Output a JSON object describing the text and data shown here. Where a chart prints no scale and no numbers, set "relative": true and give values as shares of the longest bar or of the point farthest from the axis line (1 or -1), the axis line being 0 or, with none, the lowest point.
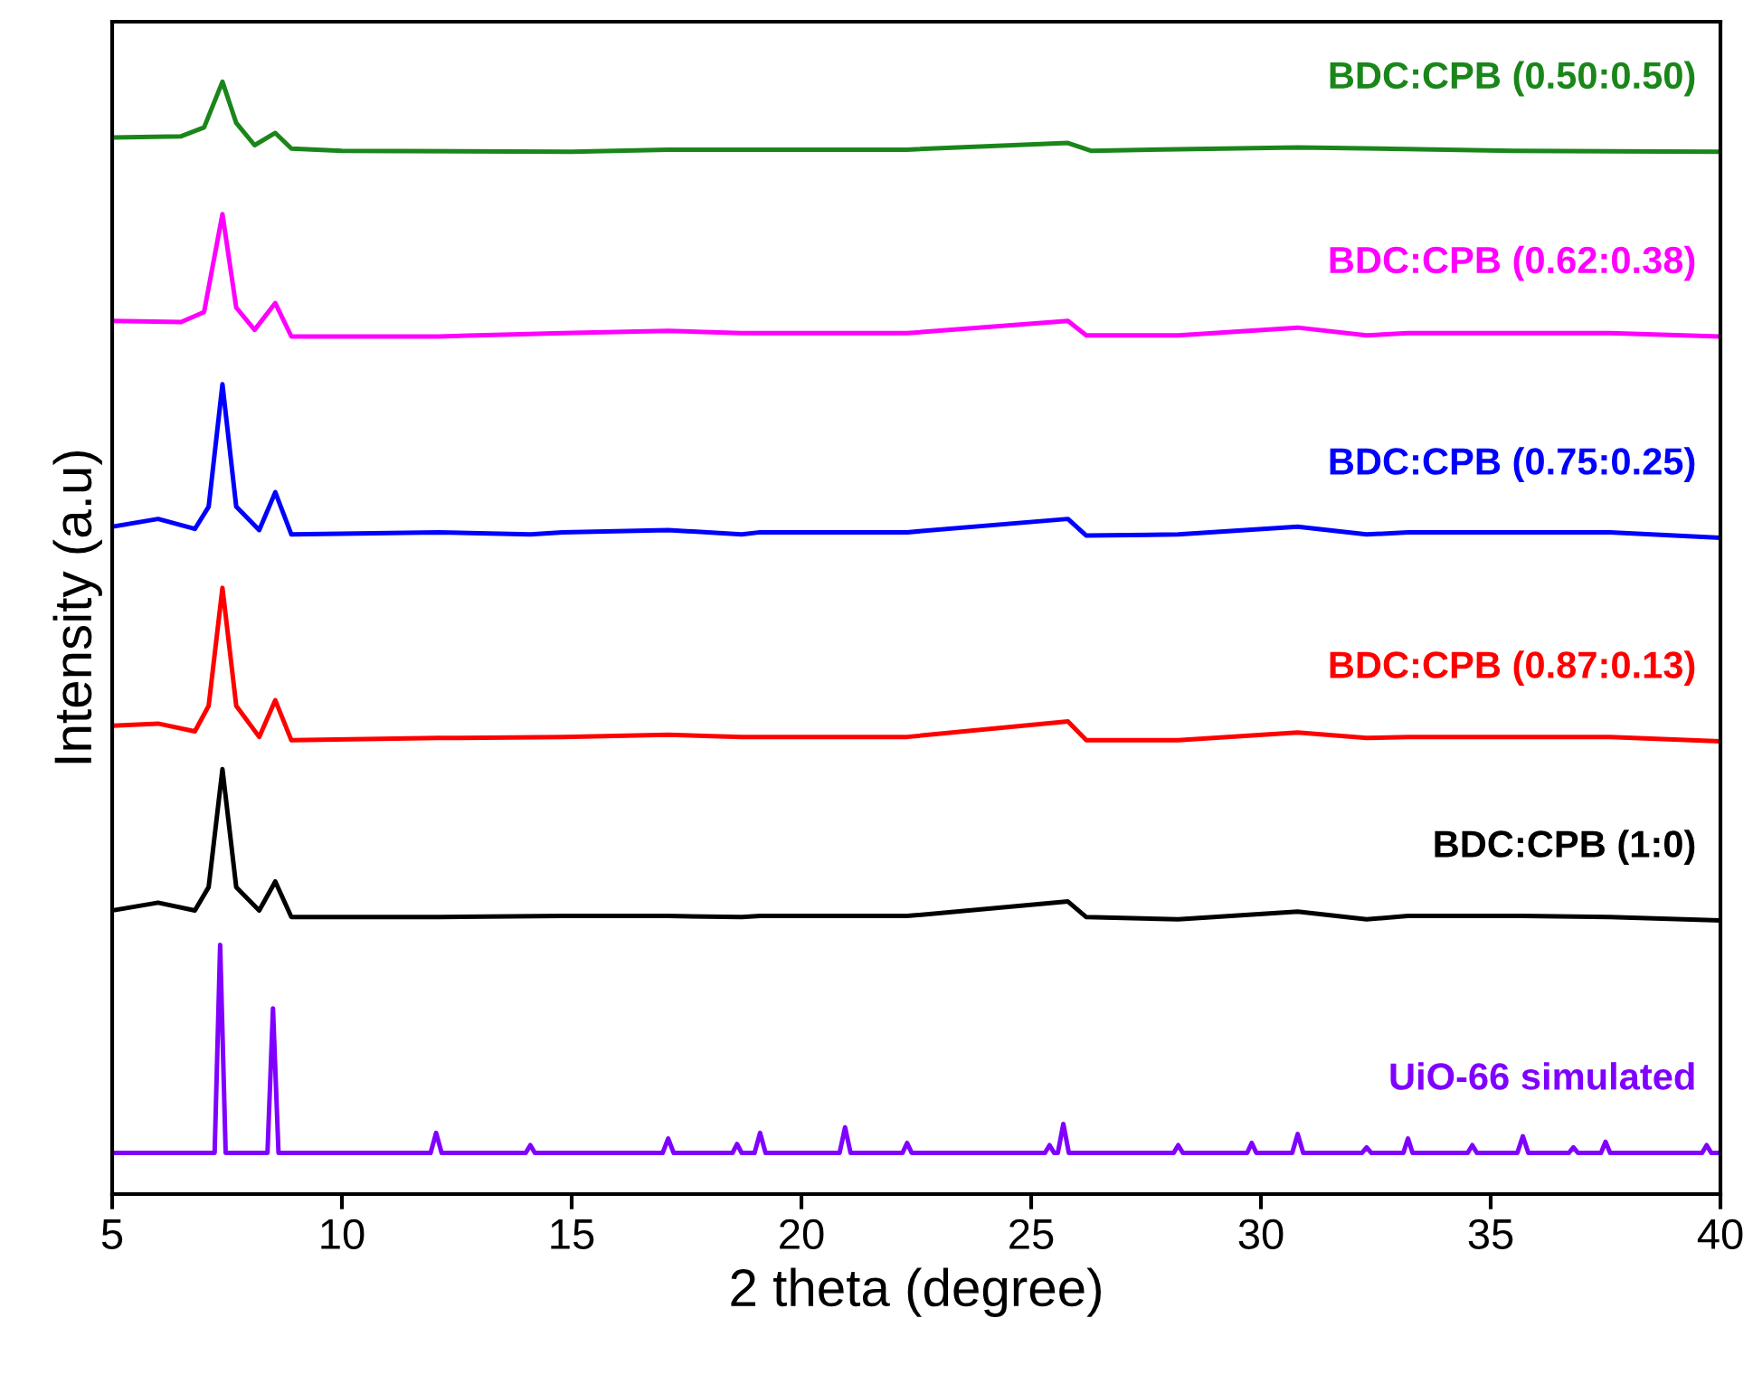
{
  "chart_data": {
    "type": "line",
    "xlabel": "2 theta (degree)",
    "ylabel": "Intensity (a.u)",
    "relative": true,
    "xlim": [
      5,
      40
    ],
    "xticks": [
      5,
      10,
      15,
      20,
      25,
      30,
      35,
      40
    ],
    "tick_labels": "x",
    "grid": false,
    "legend": false,
    "marker": "none",
    "line_style": "solid",
    "series": [
      {
        "name": "BDC:CPB (0.50:0.50)",
        "color": "#1a861a",
        "x": [
          5,
          6.5,
          7.0,
          7.4,
          7.7,
          8.1,
          8.55,
          8.9,
          10,
          15,
          17.1,
          22.3,
          25.8,
          26.3,
          30.8,
          35.5,
          40
        ],
        "values": [
          0.95,
          0.951,
          0.959,
          1.0,
          0.963,
          0.943,
          0.954,
          0.94,
          0.938,
          0.937,
          0.939,
          0.939,
          0.945,
          0.938,
          0.941,
          0.938,
          0.937
        ]
      },
      {
        "name": "BDC:CPB (0.62:0.38)",
        "color": "#ff00ff",
        "x": [
          5,
          6.5,
          7.0,
          7.4,
          7.7,
          8.1,
          8.55,
          8.9,
          12.1,
          14.8,
          17.1,
          18.7,
          19.1,
          22.3,
          25.8,
          26.2,
          28.2,
          30.8,
          32.3,
          33.2,
          35.7,
          37.6,
          40
        ],
        "values": [
          0.785,
          0.784,
          0.793,
          0.881,
          0.797,
          0.777,
          0.801,
          0.771,
          0.771,
          0.774,
          0.776,
          0.774,
          0.774,
          0.774,
          0.785,
          0.772,
          0.772,
          0.779,
          0.772,
          0.774,
          0.774,
          0.774,
          0.771
        ]
      },
      {
        "name": "BDC:CPB (0.75:0.25)",
        "color": "#0000ff",
        "x": [
          5,
          6.0,
          6.8,
          7.1,
          7.4,
          7.7,
          8.2,
          8.55,
          8.9,
          12.1,
          14.1,
          14.8,
          17.1,
          18.7,
          19.1,
          22.3,
          25.8,
          26.2,
          28.2,
          30.8,
          32.3,
          33.2,
          35.7,
          37.6,
          40
        ],
        "values": [
          0.6,
          0.607,
          0.598,
          0.618,
          0.728,
          0.618,
          0.597,
          0.631,
          0.593,
          0.595,
          0.593,
          0.595,
          0.597,
          0.593,
          0.595,
          0.595,
          0.607,
          0.592,
          0.593,
          0.6,
          0.593,
          0.595,
          0.595,
          0.595,
          0.59
        ]
      },
      {
        "name": "BDC:CPB (0.87:0.13)",
        "color": "#ff0000",
        "x": [
          5,
          6.0,
          6.8,
          7.1,
          7.4,
          7.7,
          8.2,
          8.55,
          8.9,
          12.1,
          14.8,
          17.1,
          18.7,
          19.1,
          22.3,
          25.8,
          26.2,
          28.2,
          30.8,
          32.3,
          33.2,
          35.7,
          37.6,
          40
        ],
        "values": [
          0.421,
          0.423,
          0.416,
          0.439,
          0.545,
          0.439,
          0.411,
          0.444,
          0.408,
          0.41,
          0.411,
          0.413,
          0.411,
          0.411,
          0.411,
          0.425,
          0.408,
          0.408,
          0.415,
          0.41,
          0.411,
          0.411,
          0.411,
          0.407
        ]
      },
      {
        "name": "BDC:CPB (1:0)",
        "color": "#000000",
        "x": [
          5,
          6.0,
          6.8,
          7.1,
          7.4,
          7.7,
          8.2,
          8.55,
          8.9,
          12.1,
          14.8,
          17.1,
          18.7,
          19.1,
          22.3,
          25.8,
          26.2,
          28.2,
          30.8,
          32.3,
          33.2,
          35.7,
          37.6,
          40
        ],
        "values": [
          0.255,
          0.262,
          0.255,
          0.276,
          0.382,
          0.276,
          0.255,
          0.281,
          0.249,
          0.249,
          0.25,
          0.25,
          0.249,
          0.25,
          0.25,
          0.263,
          0.249,
          0.247,
          0.254,
          0.247,
          0.25,
          0.25,
          0.249,
          0.246
        ]
      },
      {
        "name": "UiO-66 simulated",
        "color": "#8000ff",
        "x": [
          5,
          7.23,
          7.35,
          7.47,
          8.38,
          8.5,
          8.62,
          11.93,
          12.05,
          12.17,
          14.0,
          14.1,
          14.2,
          16.98,
          17.1,
          17.22,
          18.5,
          18.6,
          18.7,
          18.98,
          19.1,
          19.22,
          20.83,
          20.95,
          21.07,
          22.2,
          22.3,
          22.4,
          25.3,
          25.4,
          25.5,
          25.58,
          25.7,
          25.82,
          28.1,
          28.2,
          28.3,
          29.7,
          29.8,
          29.9,
          30.68,
          30.8,
          30.92,
          32.2,
          32.3,
          32.4,
          33.1,
          33.2,
          33.3,
          34.5,
          34.6,
          34.7,
          35.58,
          35.7,
          35.82,
          36.7,
          36.8,
          36.9,
          37.4,
          37.5,
          37.6,
          39.6,
          39.7,
          39.8,
          40
        ],
        "values": [
          0.037,
          0.037,
          0.224,
          0.037,
          0.037,
          0.167,
          0.037,
          0.037,
          0.055,
          0.037,
          0.037,
          0.044,
          0.037,
          0.037,
          0.05,
          0.037,
          0.037,
          0.045,
          0.037,
          0.037,
          0.055,
          0.037,
          0.037,
          0.06,
          0.037,
          0.037,
          0.046,
          0.037,
          0.037,
          0.044,
          0.037,
          0.037,
          0.063,
          0.037,
          0.037,
          0.044,
          0.037,
          0.037,
          0.046,
          0.037,
          0.037,
          0.054,
          0.037,
          0.037,
          0.042,
          0.037,
          0.037,
          0.05,
          0.037,
          0.037,
          0.044,
          0.037,
          0.037,
          0.052,
          0.037,
          0.037,
          0.042,
          0.037,
          0.037,
          0.047,
          0.037,
          0.037,
          0.044,
          0.037,
          0.037
        ]
      }
    ]
  }
}
